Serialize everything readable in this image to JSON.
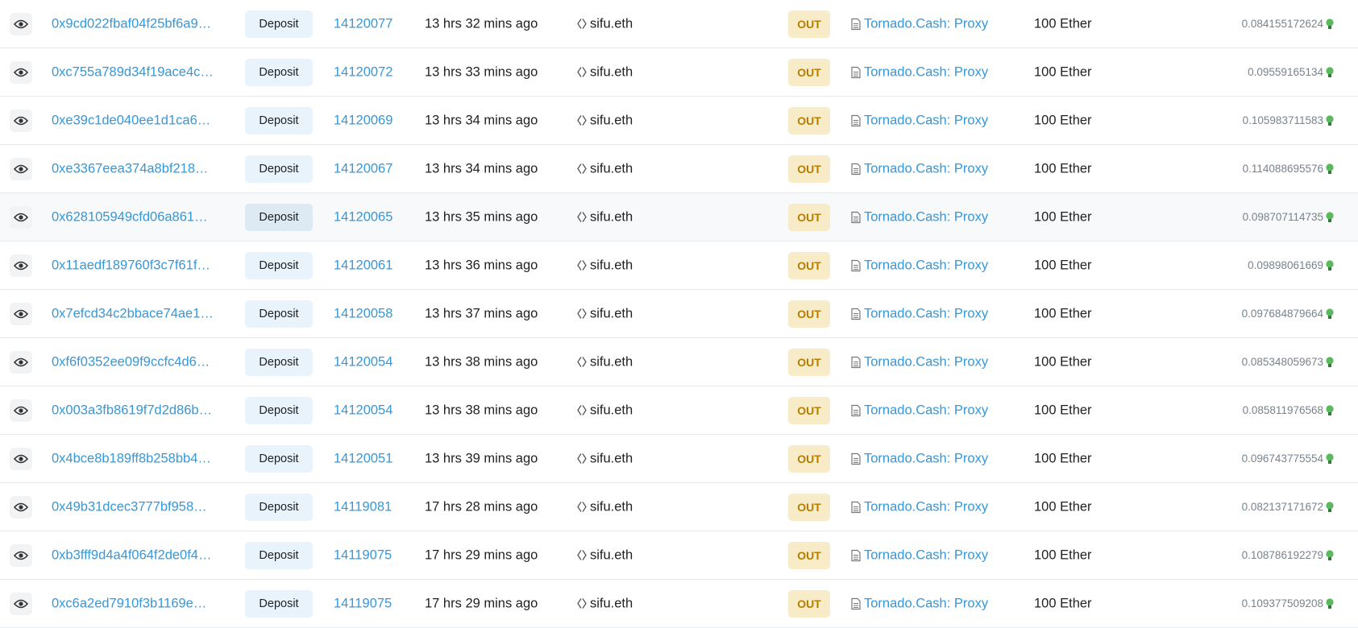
{
  "colors": {
    "link": "#3498db",
    "out_badge_bg": "#f8ecc8",
    "out_badge_text": "#b47d00",
    "method_bg": "#e9f3fb",
    "fee_icon": "#5cb85c"
  },
  "rows": [
    {
      "hash": "0x9cd022fbaf04f25bf6a9…",
      "method": "Deposit",
      "block": "14120077",
      "age": "13 hrs 32 mins ago",
      "from": "sifu.eth",
      "direction": "OUT",
      "to": "Tornado.Cash: Proxy",
      "value": "100 Ether",
      "fee": "0.084155172624"
    },
    {
      "hash": "0xc755a789d34f19ace4c…",
      "method": "Deposit",
      "block": "14120072",
      "age": "13 hrs 33 mins ago",
      "from": "sifu.eth",
      "direction": "OUT",
      "to": "Tornado.Cash: Proxy",
      "value": "100 Ether",
      "fee": "0.09559165134"
    },
    {
      "hash": "0xe39c1de040ee1d1ca6…",
      "method": "Deposit",
      "block": "14120069",
      "age": "13 hrs 34 mins ago",
      "from": "sifu.eth",
      "direction": "OUT",
      "to": "Tornado.Cash: Proxy",
      "value": "100 Ether",
      "fee": "0.105983711583"
    },
    {
      "hash": "0xe3367eea374a8bf218…",
      "method": "Deposit",
      "block": "14120067",
      "age": "13 hrs 34 mins ago",
      "from": "sifu.eth",
      "direction": "OUT",
      "to": "Tornado.Cash: Proxy",
      "value": "100 Ether",
      "fee": "0.114088695576"
    },
    {
      "hash": "0x628105949cfd06a861…",
      "method": "Deposit",
      "block": "14120065",
      "age": "13 hrs 35 mins ago",
      "from": "sifu.eth",
      "direction": "OUT",
      "to": "Tornado.Cash: Proxy",
      "value": "100 Ether",
      "fee": "0.098707114735"
    },
    {
      "hash": "0x11aedf189760f3c7f61f…",
      "method": "Deposit",
      "block": "14120061",
      "age": "13 hrs 36 mins ago",
      "from": "sifu.eth",
      "direction": "OUT",
      "to": "Tornado.Cash: Proxy",
      "value": "100 Ether",
      "fee": "0.09898061669"
    },
    {
      "hash": "0x7efcd34c2bbace74ae1…",
      "method": "Deposit",
      "block": "14120058",
      "age": "13 hrs 37 mins ago",
      "from": "sifu.eth",
      "direction": "OUT",
      "to": "Tornado.Cash: Proxy",
      "value": "100 Ether",
      "fee": "0.097684879664"
    },
    {
      "hash": "0xf6f0352ee09f9ccfc4d6…",
      "method": "Deposit",
      "block": "14120054",
      "age": "13 hrs 38 mins ago",
      "from": "sifu.eth",
      "direction": "OUT",
      "to": "Tornado.Cash: Proxy",
      "value": "100 Ether",
      "fee": "0.085348059673"
    },
    {
      "hash": "0x003a3fb8619f7d2d86b…",
      "method": "Deposit",
      "block": "14120054",
      "age": "13 hrs 38 mins ago",
      "from": "sifu.eth",
      "direction": "OUT",
      "to": "Tornado.Cash: Proxy",
      "value": "100 Ether",
      "fee": "0.085811976568"
    },
    {
      "hash": "0x4bce8b189ff8b258bb4…",
      "method": "Deposit",
      "block": "14120051",
      "age": "13 hrs 39 mins ago",
      "from": "sifu.eth",
      "direction": "OUT",
      "to": "Tornado.Cash: Proxy",
      "value": "100 Ether",
      "fee": "0.096743775554"
    },
    {
      "hash": "0x49b31dcec3777bf958…",
      "method": "Deposit",
      "block": "14119081",
      "age": "17 hrs 28 mins ago",
      "from": "sifu.eth",
      "direction": "OUT",
      "to": "Tornado.Cash: Proxy",
      "value": "100 Ether",
      "fee": "0.082137171672"
    },
    {
      "hash": "0xb3fff9d4a4f064f2de0f4…",
      "method": "Deposit",
      "block": "14119075",
      "age": "17 hrs 29 mins ago",
      "from": "sifu.eth",
      "direction": "OUT",
      "to": "Tornado.Cash: Proxy",
      "value": "100 Ether",
      "fee": "0.108786192279"
    },
    {
      "hash": "0xc6a2ed7910f3b1169e…",
      "method": "Deposit",
      "block": "14119075",
      "age": "17 hrs 29 mins ago",
      "from": "sifu.eth",
      "direction": "OUT",
      "to": "Tornado.Cash: Proxy",
      "value": "100 Ether",
      "fee": "0.109377509208"
    }
  ]
}
